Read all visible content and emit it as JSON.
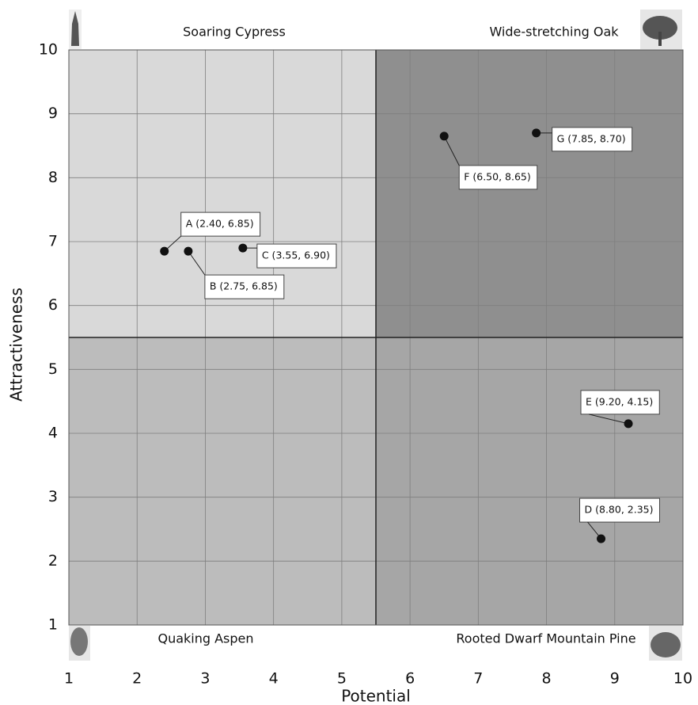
{
  "chart_data": {
    "type": "scatter",
    "xlabel": "Potential",
    "ylabel": "Attractiveness",
    "xlim": [
      1,
      10
    ],
    "ylim": [
      1,
      10
    ],
    "xticks": [
      1,
      2,
      3,
      4,
      5,
      6,
      7,
      8,
      9,
      10
    ],
    "yticks": [
      1,
      2,
      3,
      4,
      5,
      6,
      7,
      8,
      9,
      10
    ],
    "grid": true,
    "quadrant_split": {
      "x": 5.5,
      "y": 5.5
    },
    "quadrants": [
      {
        "label": "Soaring Cypress",
        "color": "#d9d9d9"
      },
      {
        "label": "Wide-stretching Oak",
        "color": "#8f8f8f"
      },
      {
        "label": "Quaking Aspen",
        "color": "#bcbcbc"
      },
      {
        "label": "Rooted Dwarf Mountain Pine",
        "color": "#a6a6a6"
      }
    ],
    "point_color": "#111111",
    "points": [
      {
        "x": 2.4,
        "y": 6.85,
        "label": "A (2.40, 6.85)"
      },
      {
        "x": 2.75,
        "y": 6.85,
        "label": "B (2.75, 6.85)"
      },
      {
        "x": 3.55,
        "y": 6.9,
        "label": "C (3.55, 6.90)"
      },
      {
        "x": 8.8,
        "y": 2.35,
        "label": "D (8.80, 2.35)"
      },
      {
        "x": 9.2,
        "y": 4.15,
        "label": "E (9.20, 4.15)"
      },
      {
        "x": 6.5,
        "y": 8.65,
        "label": "F (6.50, 8.65)"
      },
      {
        "x": 7.85,
        "y": 8.7,
        "label": "G (7.85, 8.70)"
      }
    ]
  }
}
